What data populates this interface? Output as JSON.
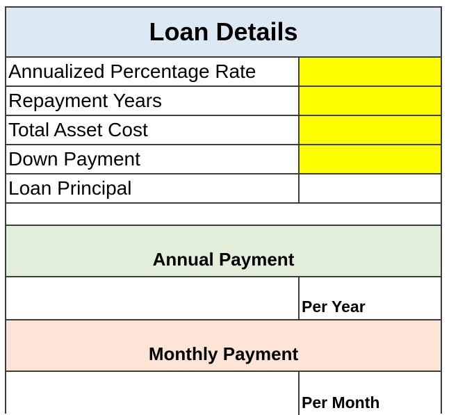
{
  "title": "Loan Details",
  "inputs": [
    {
      "label": "Annualized Percentage Rate",
      "value": ""
    },
    {
      "label": "Repayment Years",
      "value": ""
    },
    {
      "label": "Total Asset Cost",
      "value": ""
    },
    {
      "label": "Down Payment",
      "value": ""
    },
    {
      "label": "Loan Principal",
      "value": ""
    }
  ],
  "annual": {
    "heading": "Annual Payment",
    "value": "",
    "unit": "Per Year"
  },
  "monthly": {
    "heading": "Monthly Payment",
    "value": "",
    "unit": "Per Month"
  },
  "colors": {
    "input_fill": "#ffff00",
    "title_fill": "#dce9f5",
    "annual_fill": "#e2efda",
    "monthly_fill": "#fce4d6"
  }
}
